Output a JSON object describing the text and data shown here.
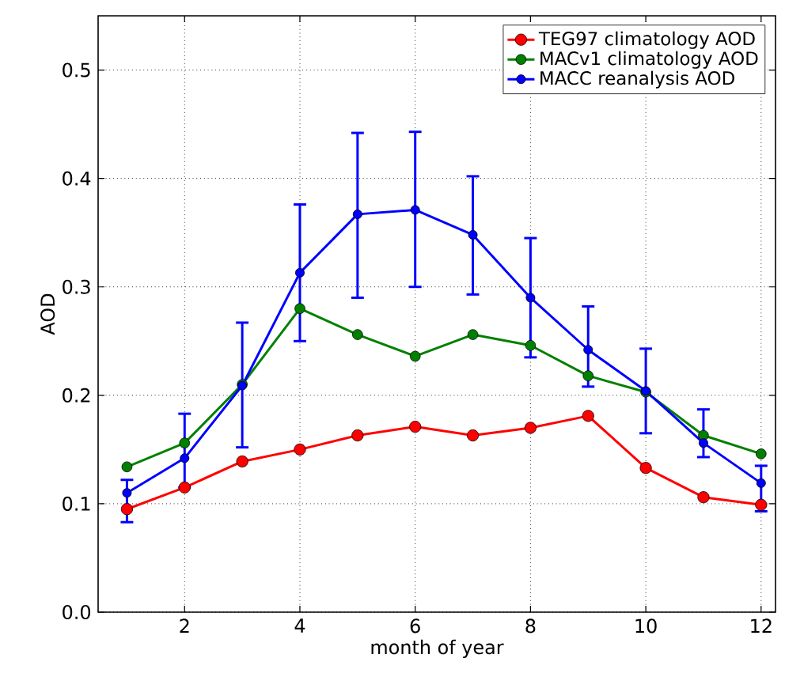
{
  "chart_data": {
    "type": "line",
    "xlabel": "month of year",
    "ylabel": "AOD",
    "x": [
      1,
      2,
      3,
      4,
      5,
      6,
      7,
      8,
      9,
      10,
      11,
      12
    ],
    "xlim": [
      0.5,
      12.25
    ],
    "ylim": [
      0,
      0.55
    ],
    "xticks": [
      2,
      4,
      6,
      8,
      10,
      12
    ],
    "yticks": [
      {
        "value": 0,
        "label": "0.0"
      },
      {
        "value": 0.1,
        "label": "0.1"
      },
      {
        "value": 0.2,
        "label": "0.2"
      },
      {
        "value": 0.3,
        "label": "0.3"
      },
      {
        "value": 0.4,
        "label": "0.4"
      },
      {
        "value": 0.5,
        "label": "0.5"
      }
    ],
    "grid": true,
    "legend": "top right",
    "marker": "circle",
    "line_style": "solid",
    "series": [
      {
        "name": "TEG97 climatology AOD",
        "color": "#ff0000",
        "values": [
          0.095,
          0.115,
          0.139,
          0.15,
          0.163,
          0.171,
          0.163,
          0.17,
          0.181,
          0.133,
          0.106,
          0.099
        ]
      },
      {
        "name": "MACv1 climatology AOD",
        "color": "#008000",
        "values": [
          0.134,
          0.156,
          0.21,
          0.28,
          0.256,
          0.236,
          0.256,
          0.246,
          0.218,
          0.203,
          0.163,
          0.146
        ]
      },
      {
        "name": "MACC reanalysis AOD",
        "color": "#0000ff",
        "values": [
          0.11,
          0.142,
          0.209,
          0.313,
          0.367,
          0.371,
          0.348,
          0.29,
          0.242,
          0.204,
          0.156,
          0.119
        ],
        "errors": [
          [
            0.083,
            0.122
          ],
          [
            0.115,
            0.183
          ],
          [
            0.152,
            0.267
          ],
          [
            0.25,
            0.376
          ],
          [
            0.29,
            0.442
          ],
          [
            0.3,
            0.443
          ],
          [
            0.293,
            0.402
          ],
          [
            0.235,
            0.345
          ],
          [
            0.208,
            0.282
          ],
          [
            0.165,
            0.243
          ],
          [
            0.143,
            0.187
          ],
          [
            0.093,
            0.135
          ]
        ]
      }
    ]
  }
}
